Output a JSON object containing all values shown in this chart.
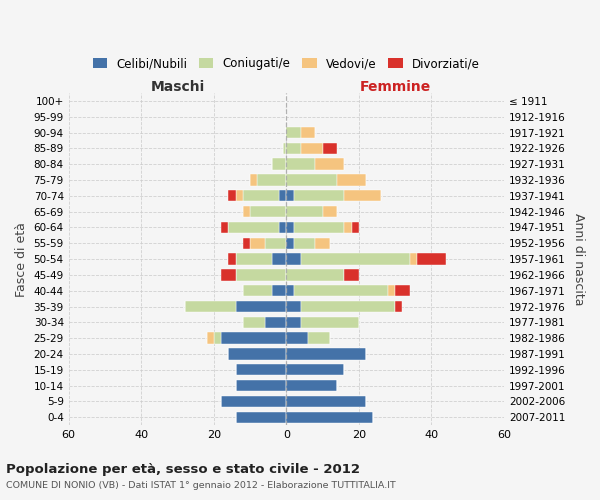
{
  "age_groups": [
    "100+",
    "95-99",
    "90-94",
    "85-89",
    "80-84",
    "75-79",
    "70-74",
    "65-69",
    "60-64",
    "55-59",
    "50-54",
    "45-49",
    "40-44",
    "35-39",
    "30-34",
    "25-29",
    "20-24",
    "15-19",
    "10-14",
    "5-9",
    "0-4"
  ],
  "birth_years": [
    "≤ 1911",
    "1912-1916",
    "1917-1921",
    "1922-1926",
    "1927-1931",
    "1932-1936",
    "1937-1941",
    "1942-1946",
    "1947-1951",
    "1952-1956",
    "1957-1961",
    "1962-1966",
    "1967-1971",
    "1972-1976",
    "1977-1981",
    "1982-1986",
    "1987-1991",
    "1992-1996",
    "1997-2001",
    "2002-2006",
    "2007-2011"
  ],
  "male_celibi": [
    0,
    0,
    0,
    0,
    0,
    0,
    2,
    0,
    2,
    0,
    4,
    0,
    4,
    14,
    6,
    18,
    16,
    14,
    14,
    18,
    14
  ],
  "male_coniugati": [
    0,
    0,
    0,
    1,
    4,
    8,
    10,
    10,
    14,
    6,
    10,
    14,
    8,
    14,
    6,
    2,
    0,
    0,
    0,
    0,
    0
  ],
  "male_vedovi": [
    0,
    0,
    0,
    0,
    0,
    2,
    2,
    2,
    0,
    4,
    0,
    0,
    0,
    0,
    0,
    2,
    0,
    0,
    0,
    0,
    0
  ],
  "male_divorziati": [
    0,
    0,
    0,
    0,
    0,
    0,
    2,
    0,
    2,
    2,
    2,
    4,
    0,
    0,
    0,
    0,
    0,
    0,
    0,
    0,
    0
  ],
  "female_celibi": [
    0,
    0,
    0,
    0,
    0,
    0,
    2,
    0,
    2,
    2,
    4,
    0,
    2,
    4,
    4,
    6,
    22,
    16,
    14,
    22,
    24
  ],
  "female_coniugati": [
    0,
    0,
    4,
    4,
    8,
    14,
    14,
    10,
    14,
    6,
    30,
    16,
    26,
    26,
    16,
    6,
    0,
    0,
    0,
    0,
    0
  ],
  "female_vedovi": [
    0,
    0,
    4,
    6,
    8,
    8,
    10,
    4,
    2,
    4,
    2,
    0,
    2,
    0,
    0,
    0,
    0,
    0,
    0,
    0,
    0
  ],
  "female_divorziati": [
    0,
    0,
    0,
    4,
    0,
    0,
    0,
    0,
    2,
    0,
    8,
    4,
    4,
    2,
    0,
    0,
    0,
    0,
    0,
    0,
    0
  ],
  "color_celibi": "#4472a8",
  "color_coniugati": "#c5d9a0",
  "color_vedovi": "#f5c47f",
  "color_divorziati": "#d9312b",
  "background_color": "#f5f5f5",
  "grid_color": "#cccccc",
  "title_line1": "Popolazione per età, sesso e stato civile - 2012",
  "title_line2": "COMUNE DI NONIO (VB) - Dati ISTAT 1° gennaio 2012 - Elaborazione TUTTITALIA.IT",
  "xlabel_left": "Maschi",
  "xlabel_right": "Femmine",
  "ylabel_left": "Fasce di età",
  "ylabel_right": "Anni di nascita",
  "xlim": 60,
  "legend_labels": [
    "Celibi/Nubili",
    "Coniugati/e",
    "Vedovi/e",
    "Divorziati/e"
  ]
}
